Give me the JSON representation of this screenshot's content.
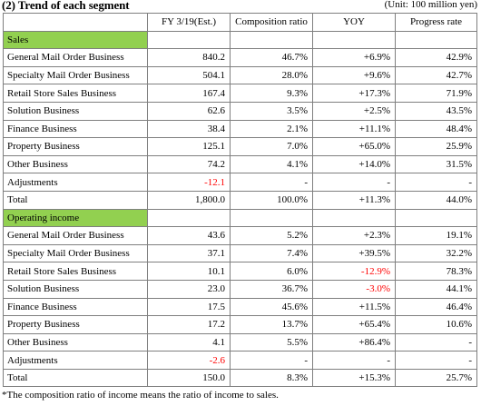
{
  "header": {
    "title": "(2) Trend of each segment",
    "unit": "(Unit: 100 million yen)"
  },
  "table": {
    "columns": [
      "",
      "FY 3/19(Est.)",
      "Composition ratio",
      "YOY",
      "Progress rate"
    ],
    "sections": [
      {
        "label": "Sales",
        "rows": [
          {
            "name": "General Mail Order Business",
            "fy": "840.2",
            "ratio": "46.7%",
            "yoy": "+6.9%",
            "progress": "42.9%"
          },
          {
            "name": "Specialty Mail Order Business",
            "fy": "504.1",
            "ratio": "28.0%",
            "yoy": "+9.6%",
            "progress": "42.7%"
          },
          {
            "name": "Retail Store Sales Business",
            "fy": "167.4",
            "ratio": "9.3%",
            "yoy": "+17.3%",
            "progress": "71.9%"
          },
          {
            "name": "Solution Business",
            "fy": "62.6",
            "ratio": "3.5%",
            "yoy": "+2.5%",
            "progress": "43.5%"
          },
          {
            "name": "Finance Business",
            "fy": "38.4",
            "ratio": "2.1%",
            "yoy": "+11.1%",
            "progress": "48.4%"
          },
          {
            "name": "Property Business",
            "fy": "125.1",
            "ratio": "7.0%",
            "yoy": "+65.0%",
            "progress": "25.9%"
          },
          {
            "name": "Other Business",
            "fy": "74.2",
            "ratio": "4.1%",
            "yoy": "+14.0%",
            "progress": "31.5%"
          },
          {
            "name": "Adjustments",
            "fy": "-12.1",
            "ratio": "-",
            "yoy": "-",
            "progress": "-"
          },
          {
            "name": "Total",
            "fy": "1,800.0",
            "ratio": "100.0%",
            "yoy": "+11.3%",
            "progress": "44.0%"
          }
        ]
      },
      {
        "label": "Operating income",
        "rows": [
          {
            "name": "General Mail Order Business",
            "fy": "43.6",
            "ratio": "5.2%",
            "yoy": "+2.3%",
            "progress": "19.1%"
          },
          {
            "name": "Specialty Mail Order Business",
            "fy": "37.1",
            "ratio": "7.4%",
            "yoy": "+39.5%",
            "progress": "32.2%"
          },
          {
            "name": "Retail Store Sales Business",
            "fy": "10.1",
            "ratio": "6.0%",
            "yoy": "-12.9%",
            "progress": "78.3%"
          },
          {
            "name": "Solution Business",
            "fy": "23.0",
            "ratio": "36.7%",
            "yoy": "-3.0%",
            "progress": "44.1%"
          },
          {
            "name": "Finance Business",
            "fy": "17.5",
            "ratio": "45.6%",
            "yoy": "+11.5%",
            "progress": "46.4%"
          },
          {
            "name": "Property Business",
            "fy": "17.2",
            "ratio": "13.7%",
            "yoy": "+65.4%",
            "progress": "10.6%"
          },
          {
            "name": "Other Business",
            "fy": "4.1",
            "ratio": "5.5%",
            "yoy": "+86.4%",
            "progress": "-"
          },
          {
            "name": "Adjustments",
            "fy": "-2.6",
            "ratio": "-",
            "yoy": "-",
            "progress": "-"
          },
          {
            "name": "Total",
            "fy": "150.0",
            "ratio": "8.3%",
            "yoy": "+15.3%",
            "progress": "25.7%"
          }
        ]
      }
    ]
  },
  "footnote": "*The composition ratio of income means the ratio of income to sales.",
  "colors": {
    "section_fill": "#92d050",
    "negative": "#ff0000",
    "border": "#7f7f7f"
  }
}
